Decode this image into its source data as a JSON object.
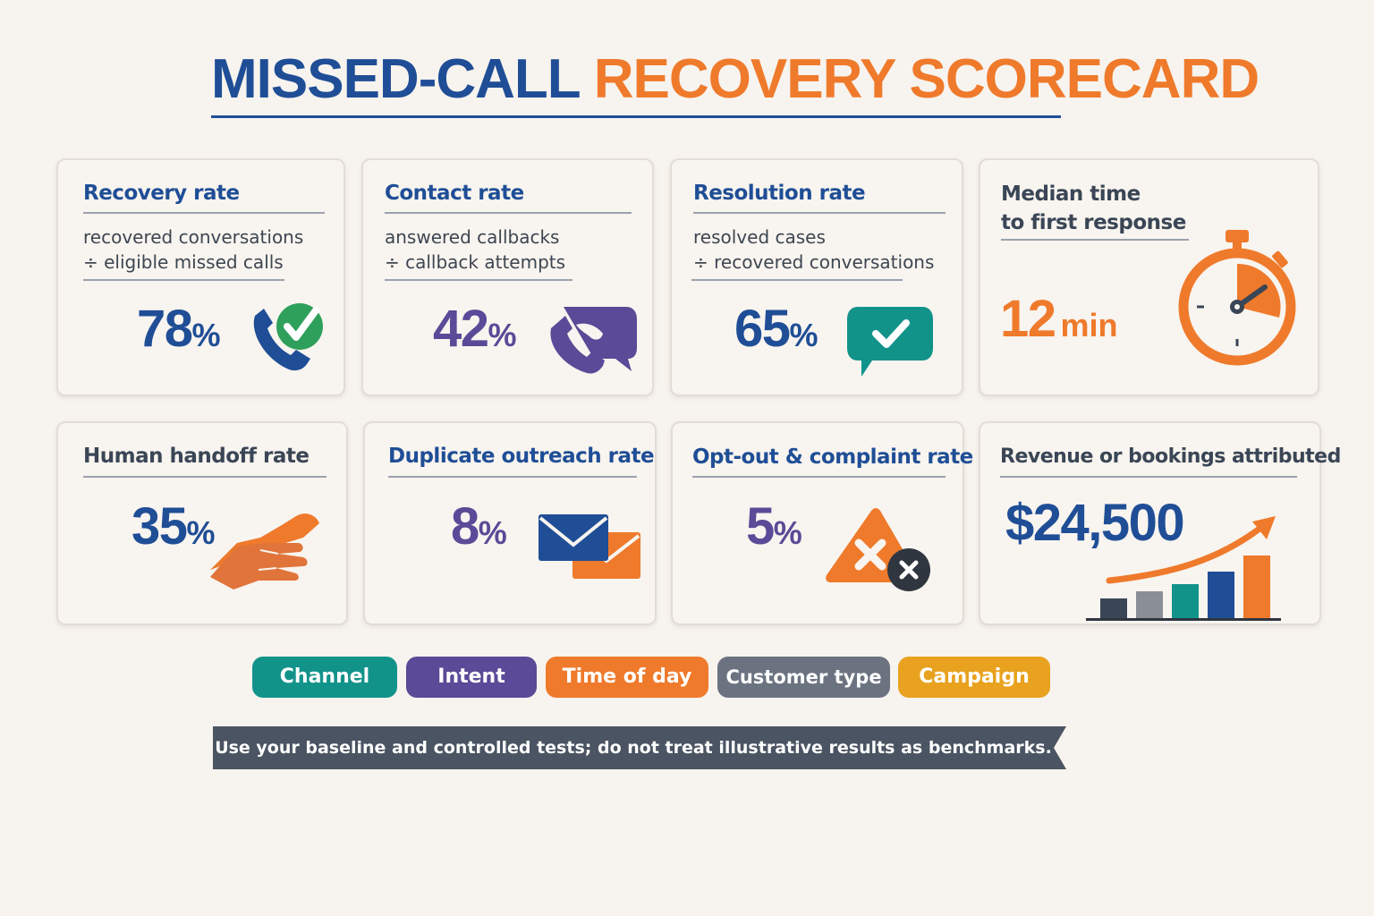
{
  "title": {
    "part1": "MISSED-CALL",
    "part2": "RECOVERY SCORECARD"
  },
  "colors": {
    "navy": "#1f4e96",
    "orange": "#ef7a2b",
    "purple": "#5a4a97",
    "teal": "#12938a",
    "green": "#2ea05b",
    "gray": "#6b7280",
    "gold": "#e8a21f",
    "dark": "#2f3640",
    "background": "#f7f3ee"
  },
  "cards": [
    {
      "title": "Recovery rate",
      "formula_line1": "recovered conversations",
      "formula_line2": "÷ eligible missed calls",
      "value": "78",
      "unit": "%",
      "icon": "phone-check-icon"
    },
    {
      "title": "Contact rate",
      "formula_line1": "answered callbacks",
      "formula_line2": "÷ callback attempts",
      "value": "42",
      "unit": "%",
      "icon": "phone-callback-bubble-icon"
    },
    {
      "title": "Resolution rate",
      "formula_line1": "resolved cases",
      "formula_line2": "÷ recovered conversations",
      "value": "65",
      "unit": "%",
      "icon": "chat-check-icon"
    },
    {
      "title_line1": "Median time",
      "title_line2": "to first response",
      "value": "12",
      "unit": "min",
      "icon": "stopwatch-icon"
    },
    {
      "title": "Human handoff rate",
      "value": "35",
      "unit": "%",
      "icon": "handshake-icon"
    },
    {
      "title": "Duplicate outreach rate",
      "value": "8",
      "unit": "%",
      "icon": "envelopes-icon"
    },
    {
      "title": "Opt-out & complaint rate",
      "value": "5",
      "unit": "%",
      "icon": "warning-x-icon"
    },
    {
      "title": "Revenue or bookings attributed",
      "value": "$24,500",
      "icon": "growth-chart-icon"
    }
  ],
  "segments": [
    {
      "label": "Channel",
      "color": "#12938a"
    },
    {
      "label": "Intent",
      "color": "#5a4a97"
    },
    {
      "label": "Time of day",
      "color": "#ef7a2b"
    },
    {
      "label": "Customer type",
      "color": "#6b7280"
    },
    {
      "label": "Campaign",
      "color": "#e8a21f"
    }
  ],
  "footer_note": "Use your baseline and controlled tests; do not treat illustrative results as benchmarks."
}
